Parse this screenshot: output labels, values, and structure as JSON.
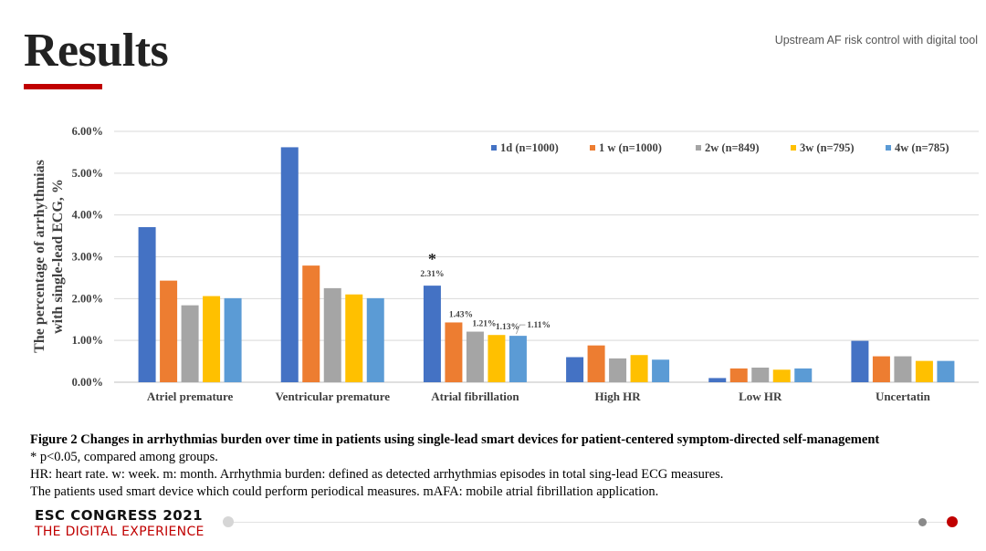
{
  "slide": {
    "title": "Results",
    "subtitle": "Upstream AF risk control with digital tool",
    "accent_color": "#c00000",
    "caption": {
      "figure_line": "Figure 2 Changes in arrhythmias burden over time in patients using single-lead smart devices for patient-centered symptom-directed self-management",
      "line2": "* p<0.05, compared among groups.",
      "line3": "HR: heart rate. w: week. m: month. Arrhythmia burden: defined as detected arrhythmias episodes in total sing-lead ECG measures.",
      "line4": "The patients used smart device which could perform periodical measures.  mAFA: mobile atrial fibrillation application."
    },
    "footer": {
      "line1": "ESC CONGRESS 2021",
      "line2": "THE DIGITAL EXPERIENCE",
      "line2_color": "#c00000"
    }
  },
  "chart_data": {
    "type": "bar",
    "ylabel_line1": "The percentage of arrhythmias",
    "ylabel_line2": "with single-lead ECG, %",
    "ylim": [
      0,
      0.06
    ],
    "yticks": [
      "0.00%",
      "1.00%",
      "2.00%",
      "3.00%",
      "4.00%",
      "5.00%",
      "6.00%"
    ],
    "grid": true,
    "legend_position": "top-right",
    "categories": [
      "Atriel premature",
      "Ventricular premature",
      "Atrial fibrillation",
      "High HR",
      "Low HR",
      "Uncertatin"
    ],
    "series": [
      {
        "name": "1d (n=1000)",
        "color": "#4472c4",
        "values": [
          0.0371,
          0.0562,
          0.0231,
          0.006,
          0.001,
          0.0099
        ]
      },
      {
        "name": "1 w (n=1000)",
        "color": "#ed7d31",
        "values": [
          0.0243,
          0.0279,
          0.0143,
          0.0088,
          0.0033,
          0.0062
        ]
      },
      {
        "name": "2w (n=849)",
        "color": "#a5a5a5",
        "values": [
          0.0184,
          0.0225,
          0.0121,
          0.0057,
          0.0035,
          0.0062
        ]
      },
      {
        "name": "3w (n=795)",
        "color": "#ffc000",
        "values": [
          0.0206,
          0.021,
          0.0113,
          0.0065,
          0.003,
          0.0051
        ]
      },
      {
        "name": "4w (n=785)",
        "color": "#5b9bd5",
        "values": [
          0.0201,
          0.0201,
          0.0111,
          0.0054,
          0.0033,
          0.0051
        ]
      }
    ],
    "data_labels": {
      "category": "Atrial fibrillation",
      "labels": [
        "2.31%",
        "1.43%",
        "1.21%",
        "1.13%",
        "1.11%"
      ],
      "significance_marker": "*"
    }
  }
}
